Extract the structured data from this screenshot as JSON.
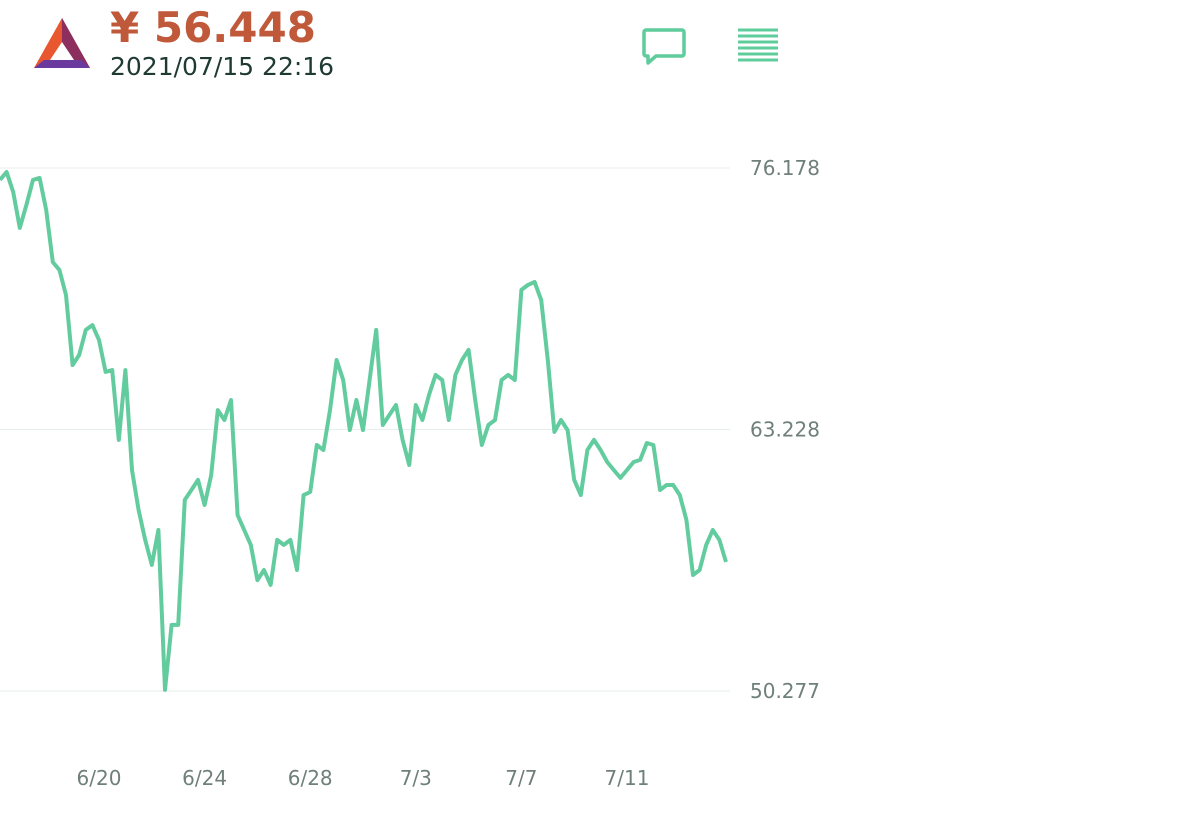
{
  "header": {
    "price": "¥ 56.448",
    "datetime": "2021/07/15 22:16"
  },
  "chart_data": {
    "type": "line",
    "categories": [
      null,
      null,
      null,
      null,
      null,
      null,
      null,
      null,
      null,
      null,
      null,
      null,
      null,
      null,
      null,
      "6/20",
      null,
      null,
      null,
      null,
      null,
      null,
      null,
      null,
      null,
      null,
      null,
      null,
      null,
      null,
      null,
      "6/24",
      null,
      null,
      null,
      null,
      null,
      null,
      null,
      null,
      null,
      null,
      null,
      null,
      null,
      null,
      null,
      "6/28",
      null,
      null,
      null,
      null,
      null,
      null,
      null,
      null,
      null,
      null,
      null,
      null,
      null,
      null,
      null,
      "7/3",
      null,
      null,
      null,
      null,
      null,
      null,
      null,
      null,
      null,
      null,
      null,
      null,
      null,
      null,
      null,
      "7/7",
      null,
      null,
      null,
      null,
      null,
      null,
      null,
      null,
      null,
      null,
      null,
      null,
      null,
      null,
      null,
      "7/11",
      null,
      null,
      null,
      null,
      null,
      null,
      null,
      null,
      null,
      null,
      null,
      null,
      null,
      null,
      null
    ],
    "values": [
      75.59,
      75.98,
      74.99,
      73.21,
      74.35,
      75.59,
      75.69,
      74.1,
      71.52,
      71.13,
      69.89,
      66.42,
      66.92,
      68.16,
      68.4,
      67.66,
      66.08,
      66.17,
      62.71,
      66.17,
      61.22,
      59.24,
      57.76,
      56.52,
      58.25,
      50.33,
      53.55,
      53.55,
      59.74,
      60.23,
      60.73,
      59.49,
      60.97,
      64.19,
      63.7,
      64.69,
      58.99,
      58.25,
      57.51,
      55.77,
      56.27,
      55.53,
      57.76,
      57.51,
      57.76,
      56.27,
      59.98,
      60.13,
      62.46,
      62.21,
      64.19,
      66.67,
      65.68,
      63.2,
      64.69,
      63.2,
      65.68,
      68.16,
      63.45,
      63.95,
      64.44,
      62.71,
      61.47,
      64.44,
      63.7,
      64.94,
      65.93,
      65.68,
      63.7,
      65.93,
      66.67,
      67.17,
      64.69,
      62.46,
      63.45,
      63.7,
      65.68,
      65.93,
      65.68,
      70.14,
      70.39,
      70.53,
      69.64,
      66.67,
      63.11,
      63.7,
      63.2,
      60.73,
      59.98,
      62.21,
      62.71,
      62.21,
      61.62,
      61.22,
      60.83,
      61.22,
      61.62,
      61.72,
      62.56,
      62.46,
      60.23,
      60.48,
      60.48,
      59.98,
      58.75,
      56.02,
      56.27,
      57.51,
      58.25,
      57.76,
      56.67
    ],
    "color": "#63cc9f",
    "ylim": [
      50.277,
      76.178
    ],
    "yticks": [
      76.178,
      63.228,
      50.277
    ],
    "grid": true
  }
}
